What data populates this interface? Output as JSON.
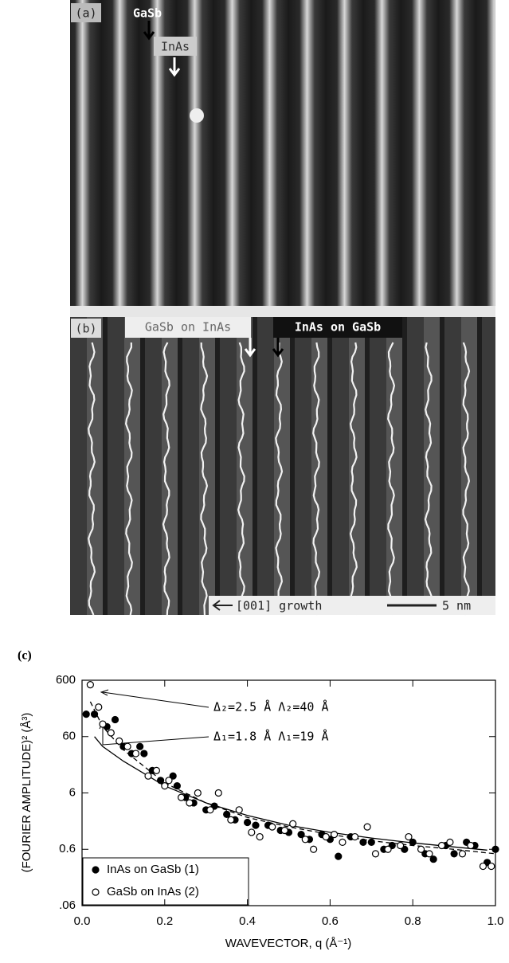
{
  "figure": {
    "panel_a": {
      "label": "(a)",
      "arrow_labels": [
        "GaSb",
        "InAs"
      ]
    },
    "panel_b": {
      "label": "(b)",
      "arrow_labels": [
        "GaSb on InAs",
        "InAs on GaSb"
      ],
      "direction": "[001] growth",
      "scale": "5 nm"
    }
  },
  "chart_data": {
    "type": "scatter",
    "panel_label": "(c)",
    "y_label": "(FOURIER AMPLITUDE)² (Å³)",
    "x_label": "WAVEVECTOR, q (Å⁻¹)",
    "annotations": [
      "Δ₂=2.5 Å   Λ₂=40 Å",
      "Δ₁=1.8 Å   Λ₁=19 Å"
    ],
    "log_y": true,
    "legend": "lower left",
    "xlim": [
      0,
      1
    ],
    "xticks": [
      {
        "value": 0,
        "label": "0.0"
      },
      0.2,
      0.4,
      0.6,
      0.8,
      {
        "value": 1,
        "label": "1.0"
      }
    ],
    "ylim": [
      0.06,
      600
    ],
    "yticks": [
      {
        "value": 0.06,
        "label": ".06"
      },
      0.6,
      6,
      60,
      600
    ],
    "series": [
      {
        "name": "InAs on GaSb (1)",
        "color": "#000000",
        "filled": true,
        "x": [
          0.01,
          0.03,
          0.06,
          0.08,
          0.1,
          0.12,
          0.14,
          0.15,
          0.17,
          0.19,
          0.22,
          0.23,
          0.25,
          0.27,
          0.3,
          0.32,
          0.35,
          0.37,
          0.4,
          0.42,
          0.45,
          0.48,
          0.5,
          0.53,
          0.55,
          0.58,
          0.6,
          0.62,
          0.65,
          0.68,
          0.7,
          0.73,
          0.75,
          0.78,
          0.8,
          0.83,
          0.85,
          0.88,
          0.9,
          0.93,
          0.95,
          0.98,
          1.0
        ],
        "values": [
          150,
          150,
          90,
          120,
          40,
          30,
          40,
          30,
          15,
          10,
          12,
          8,
          5,
          4,
          3,
          3.5,
          2.5,
          2,
          1.8,
          1.6,
          1.6,
          1.3,
          1.2,
          1.1,
          0.9,
          1.1,
          0.9,
          0.45,
          1,
          0.8,
          0.8,
          0.6,
          0.7,
          0.6,
          0.8,
          0.5,
          0.4,
          0.7,
          0.5,
          0.8,
          0.7,
          0.35,
          0.6
        ]
      },
      {
        "name": "GaSb on InAs (2)",
        "color": "#000000",
        "filled": false,
        "x": [
          0.02,
          0.04,
          0.05,
          0.07,
          0.09,
          0.11,
          0.13,
          0.16,
          0.18,
          0.2,
          0.21,
          0.24,
          0.26,
          0.28,
          0.31,
          0.33,
          0.36,
          0.38,
          0.41,
          0.43,
          0.46,
          0.49,
          0.51,
          0.54,
          0.56,
          0.59,
          0.61,
          0.63,
          0.66,
          0.69,
          0.71,
          0.74,
          0.77,
          0.79,
          0.82,
          0.84,
          0.87,
          0.89,
          0.92,
          0.94,
          0.97,
          0.99
        ],
        "values": [
          500,
          200,
          100,
          70,
          50,
          40,
          30,
          12,
          15,
          8,
          10,
          5,
          4,
          6,
          3,
          6,
          2,
          3,
          1.2,
          1,
          1.5,
          1.3,
          1.7,
          0.9,
          0.6,
          1,
          1.1,
          0.8,
          1,
          1.5,
          0.5,
          0.6,
          0.7,
          1,
          0.6,
          0.5,
          0.7,
          0.8,
          0.5,
          0.7,
          0.3,
          0.3
        ]
      }
    ],
    "curves": [
      {
        "dash": false,
        "x": [
          0.03,
          0.05,
          0.1,
          0.2,
          0.3,
          0.4,
          0.5,
          0.6,
          0.7,
          0.8,
          0.9,
          0.98
        ],
        "values": [
          60,
          40,
          22,
          8,
          4,
          2.4,
          1.6,
          1.2,
          0.95,
          0.78,
          0.66,
          0.58
        ]
      },
      {
        "dash": true,
        "x": [
          0.02,
          0.05,
          0.1,
          0.2,
          0.3,
          0.4,
          0.5,
          0.6,
          0.7,
          0.8,
          0.9,
          1.0
        ],
        "values": [
          250,
          90,
          35,
          9,
          4,
          2.2,
          1.5,
          1.1,
          0.85,
          0.7,
          0.6,
          0.5
        ]
      }
    ]
  }
}
